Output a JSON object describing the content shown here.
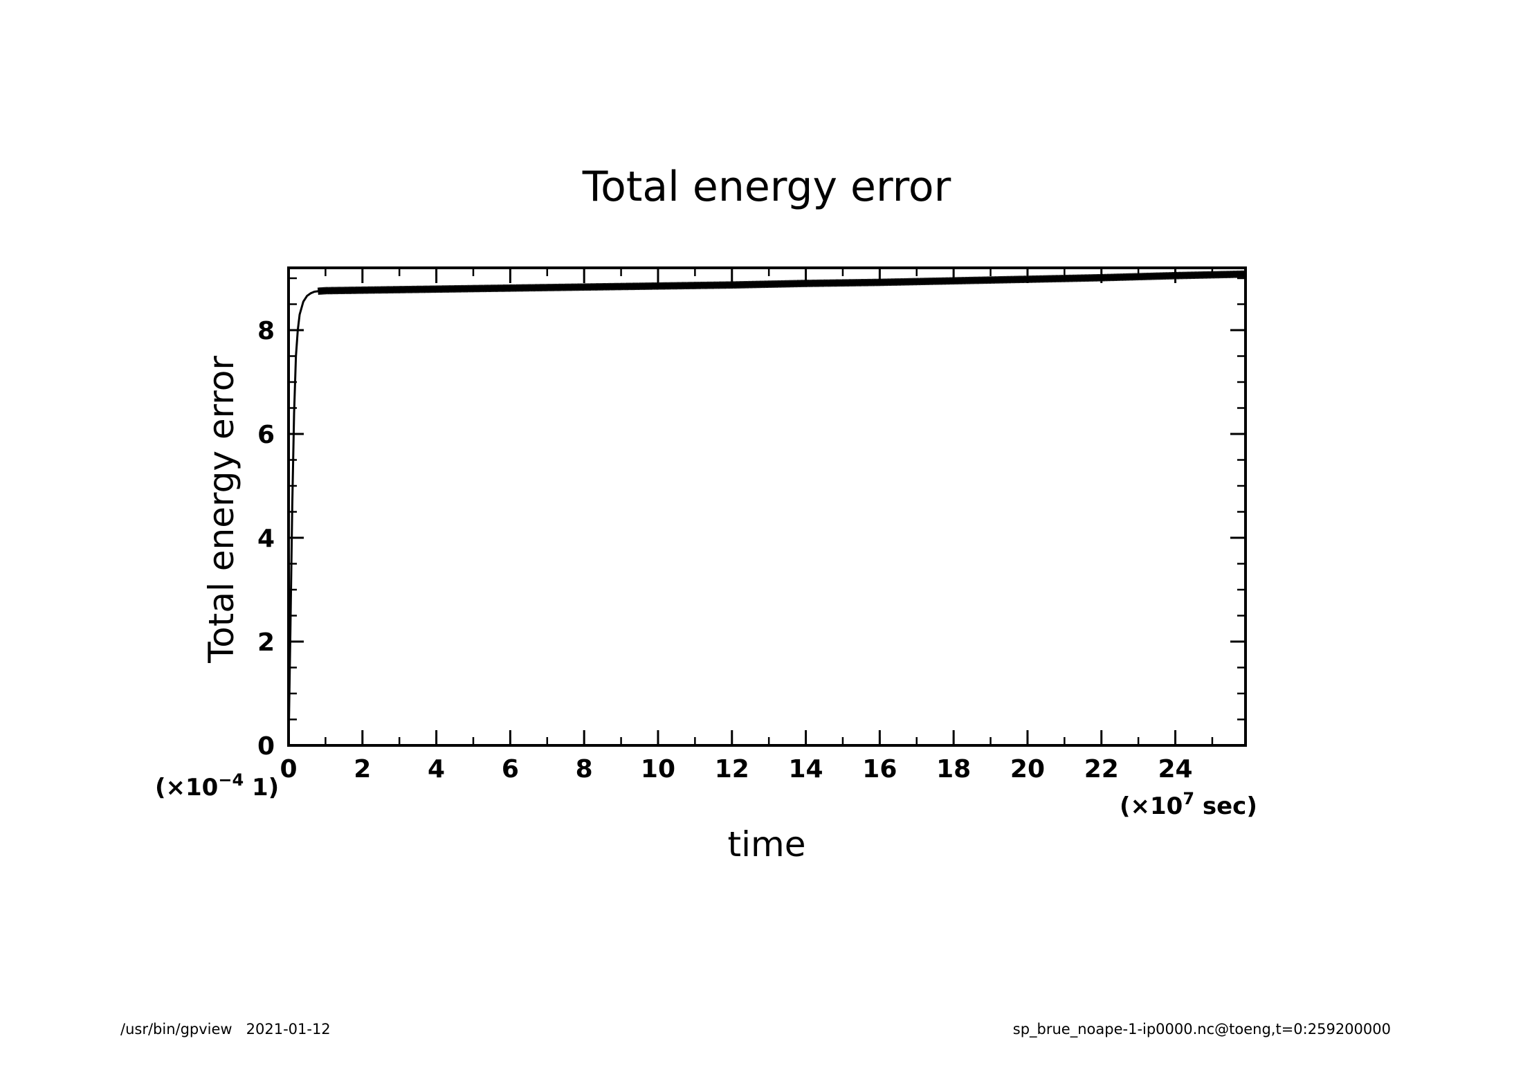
{
  "chart_data": {
    "type": "line",
    "title": "Total energy error",
    "xlabel": "time",
    "ylabel": "Total energy error",
    "x_scale": {
      "prefix": "(×10",
      "exponent": "7",
      "suffix": " sec)"
    },
    "y_scale": {
      "prefix": "(×10",
      "exponent": "−4",
      "suffix": " 1)"
    },
    "xlim": [
      0,
      25.9
    ],
    "ylim": [
      0,
      9.2
    ],
    "x_major_ticks": [
      0,
      2,
      4,
      6,
      8,
      10,
      12,
      14,
      16,
      18,
      20,
      22,
      24
    ],
    "x_tick_labels": [
      "0",
      "2",
      "4",
      "6",
      "8",
      "10",
      "12",
      "14",
      "16",
      "18",
      "20",
      "22",
      "24"
    ],
    "x_minor_step": 1,
    "y_major_ticks": [
      0,
      2,
      4,
      6,
      8
    ],
    "y_tick_labels": [
      "0",
      "2",
      "4",
      "6",
      "8"
    ],
    "y_minor_step": 0.5,
    "grid": false,
    "series": [
      {
        "color": "#000000",
        "oscillation_amplitude": 0.07,
        "x": [
          0,
          0.05,
          0.1,
          0.15,
          0.2,
          0.25,
          0.3,
          0.4,
          0.5,
          0.6,
          0.7,
          0.8,
          1.0,
          2,
          4,
          6,
          8,
          10,
          12,
          14,
          16,
          18,
          20,
          22,
          24,
          25.9
        ],
        "y": [
          0,
          2.2,
          4.6,
          6.4,
          7.5,
          8.0,
          8.3,
          8.55,
          8.66,
          8.71,
          8.74,
          8.75,
          8.76,
          8.77,
          8.79,
          8.81,
          8.83,
          8.85,
          8.87,
          8.9,
          8.92,
          8.95,
          8.98,
          9.01,
          9.05,
          9.08
        ]
      }
    ]
  },
  "footer": {
    "left": "/usr/bin/gpview   2021-01-12",
    "right": "sp_brue_noape-1-ip0000.nc@toeng,t=0:259200000"
  }
}
